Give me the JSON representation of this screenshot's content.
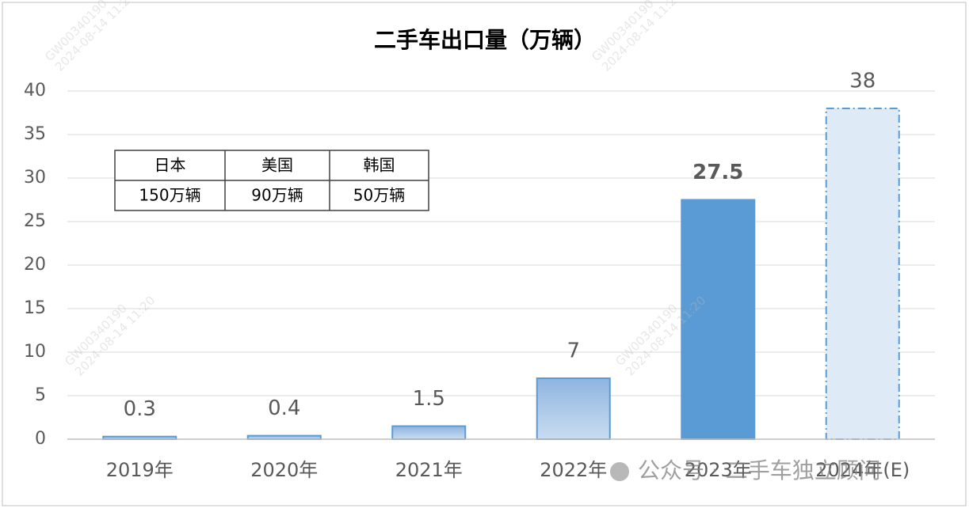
{
  "chart_data": {
    "type": "bar",
    "title": "二手车出口量（万辆）",
    "categories": [
      "2019年",
      "2020年",
      "2021年",
      "2022年",
      "2023年",
      "2024年(E)"
    ],
    "values": [
      0.3,
      0.4,
      1.5,
      7,
      27.5,
      38
    ],
    "colors": [
      "#a9c6e8",
      "#a9c6e8",
      "#a9c6e8",
      "#a9c6e8",
      "#5b9bd5",
      "#deeaf6"
    ],
    "styles": [
      "gradient",
      "gradient",
      "gradient",
      "gradient",
      "solid",
      "dashed"
    ],
    "ylim": [
      0,
      40
    ],
    "yticks": [
      0,
      5,
      10,
      15,
      20,
      25,
      30,
      35,
      40
    ],
    "grid": true,
    "table": {
      "header": [
        "日本",
        "美国",
        "韩国"
      ],
      "rows": [
        [
          "150万辆",
          "90万辆",
          "50万辆"
        ]
      ]
    },
    "watermark": "公众号 · 二手车独立顾问",
    "stamp": [
      "GW00340190",
      "2024-08-14 11:20"
    ]
  }
}
